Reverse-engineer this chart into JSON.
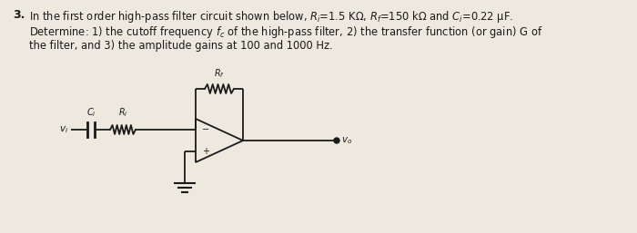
{
  "background_color": "#ede9df",
  "text_color": "#1a1a1a",
  "line1": "In the first order high-pass filter circuit shown below, $R_i$=1.5 KΩ, $R_f$=150 kΩ and $C_i$=0.22 μF.",
  "line2": "Determine: 1) the cutoff frequency $f_c$ of the high-pass filter, 2) the transfer function (or gain) G of",
  "line3": "the filter, and 3) the amplitude gains at 100 and 1000 Hz.",
  "number": "3.",
  "fig_width": 7.0,
  "fig_height": 2.57,
  "dpi": 100
}
